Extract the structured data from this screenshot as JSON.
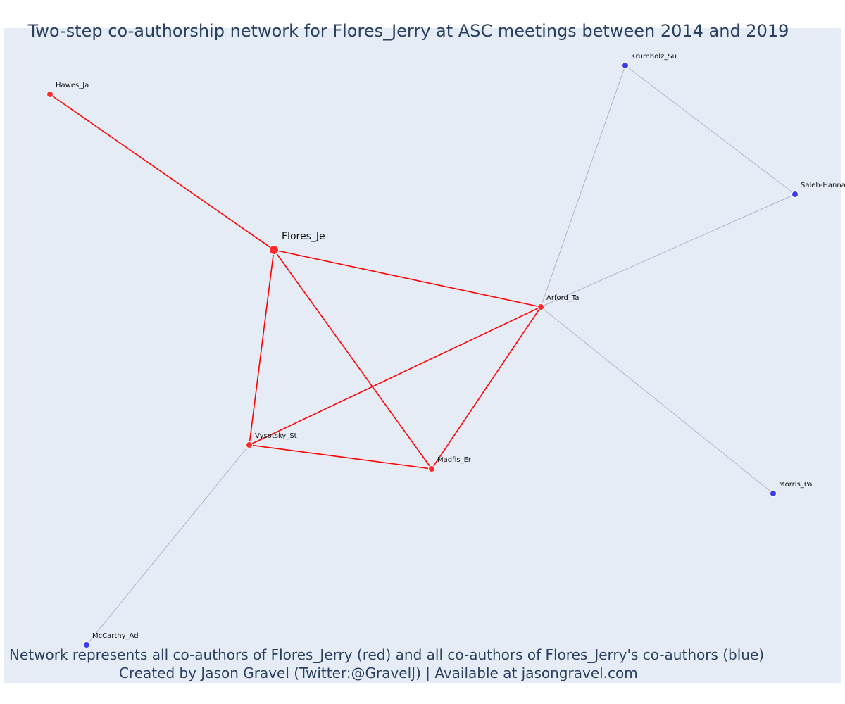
{
  "title": "Two-step co-authorship network for Flores_Jerry at ASC meetings between 2014 and 2019",
  "annotations": [
    "Network represents all co-authors of Flores_Jerry (red) and all co-authors of Flores_Jerry's co-authors (blue)",
    "Created by Jason Gravel (Twitter:@GravelJ) | Available at jasongravel.com"
  ],
  "colors": {
    "background": "#e5ecf6",
    "first_step_node": "#ff2a2a",
    "second_step_node": "#3b3bf0",
    "first_step_edge": "#ff0000",
    "second_step_edge": "#b0b4c8",
    "text": "#2a3f5f"
  },
  "nodes": [
    {
      "id": "Flores_Je",
      "label": "Flores_Je",
      "group": "ego"
    },
    {
      "id": "Hawes_Ja",
      "label": "Hawes_Ja",
      "group": "first"
    },
    {
      "id": "Arford_Ta",
      "label": "Arford_Ta",
      "group": "first"
    },
    {
      "id": "Vysotsky_St",
      "label": "Vysotsky_St",
      "group": "first"
    },
    {
      "id": "Madfis_Er",
      "label": "Madfis_Er",
      "group": "first"
    },
    {
      "id": "Krumholz_Su",
      "label": "Krumholz_Su",
      "group": "second"
    },
    {
      "id": "Saleh-Hanna",
      "label": "Saleh-Hanna",
      "group": "second"
    },
    {
      "id": "Morris_Pa",
      "label": "Morris_Pa",
      "group": "second"
    },
    {
      "id": "McCarthy_Ad",
      "label": "McCarthy_Ad",
      "group": "second"
    }
  ],
  "edges": [
    {
      "source": "Flores_Je",
      "target": "Hawes_Ja",
      "type": "first"
    },
    {
      "source": "Flores_Je",
      "target": "Arford_Ta",
      "type": "first"
    },
    {
      "source": "Flores_Je",
      "target": "Vysotsky_St",
      "type": "first"
    },
    {
      "source": "Flores_Je",
      "target": "Madfis_Er",
      "type": "first"
    },
    {
      "source": "Arford_Ta",
      "target": "Vysotsky_St",
      "type": "first"
    },
    {
      "source": "Arford_Ta",
      "target": "Madfis_Er",
      "type": "first"
    },
    {
      "source": "Vysotsky_St",
      "target": "Madfis_Er",
      "type": "first"
    },
    {
      "source": "Arford_Ta",
      "target": "Krumholz_Su",
      "type": "second"
    },
    {
      "source": "Arford_Ta",
      "target": "Saleh-Hanna",
      "type": "second"
    },
    {
      "source": "Krumholz_Su",
      "target": "Saleh-Hanna",
      "type": "second"
    },
    {
      "source": "Arford_Ta",
      "target": "Morris_Pa",
      "type": "second"
    },
    {
      "source": "Vysotsky_St",
      "target": "McCarthy_Ad",
      "type": "second"
    }
  ]
}
